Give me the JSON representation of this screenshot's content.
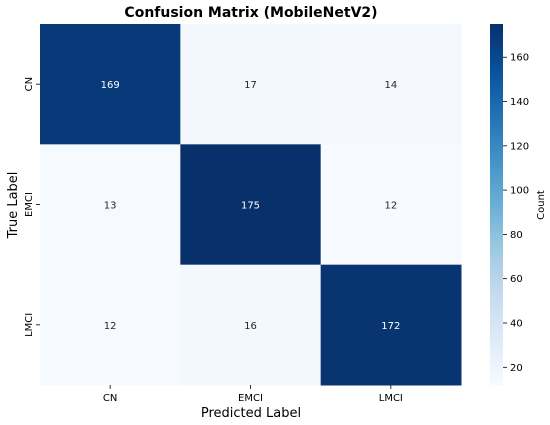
{
  "chart_data": {
    "type": "heatmap",
    "title": "Confusion Matrix (MobileNetV2)",
    "xlabel": "Predicted Label",
    "ylabel": "True Label",
    "x_categories": [
      "CN",
      "EMCI",
      "LMCI"
    ],
    "y_categories": [
      "CN",
      "EMCI",
      "LMCI"
    ],
    "values": [
      [
        169,
        17,
        14
      ],
      [
        13,
        175,
        12
      ],
      [
        12,
        16,
        172
      ]
    ],
    "colormap": "Blues",
    "colorbar": {
      "label": "Count",
      "range": [
        12,
        175
      ],
      "ticks": [
        20,
        40,
        60,
        80,
        100,
        120,
        140,
        160
      ]
    }
  }
}
